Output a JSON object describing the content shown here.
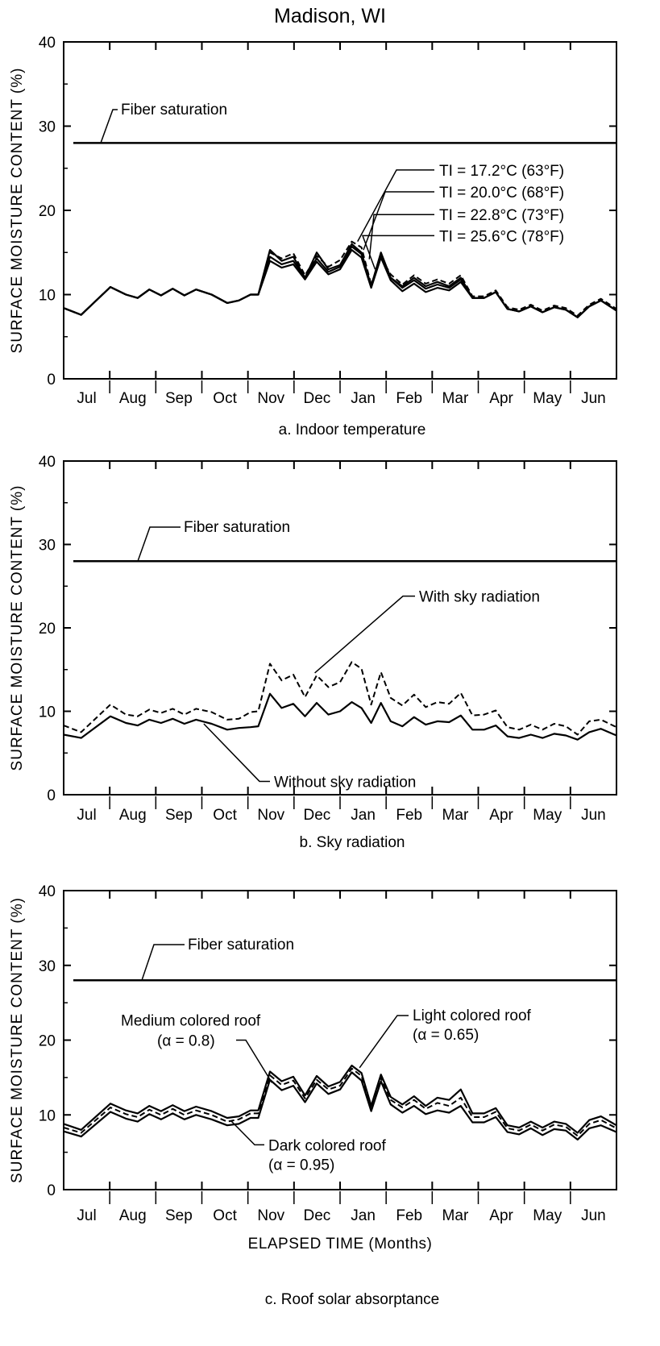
{
  "title": "Madison, WI",
  "chart_data": [
    {
      "type": "line",
      "caption": "a. Indoor temperature",
      "ylabel": "SURFACE  MOISTURE  CONTENT (%)",
      "xlabel": "",
      "ylim": [
        0,
        40
      ],
      "yticks": [
        0,
        10,
        20,
        30,
        40
      ],
      "month_labels": [
        "Jul",
        "Aug",
        "Sep",
        "Oct",
        "Nov",
        "Dec",
        "Jan",
        "Feb",
        "Mar",
        "Apr",
        "May",
        "Jun"
      ],
      "x": [
        0,
        0.45,
        1.2,
        1.6,
        1.9,
        2.2,
        2.5,
        2.8,
        3.1,
        3.4,
        3.8,
        4.2,
        4.5,
        4.8,
        5.0,
        5.3,
        5.6,
        5.9,
        6.2,
        6.5,
        6.8,
        7.1,
        7.4,
        7.65,
        7.9,
        8.15,
        8.4,
        8.7,
        9.0,
        9.3,
        9.6,
        9.9,
        10.2,
        10.5,
        10.8,
        11.1,
        11.4,
        11.7,
        12.0,
        12.3,
        12.6,
        12.9,
        13.2,
        13.5,
        13.8,
        14.2
      ],
      "series": [
        {
          "style": "solid",
          "values": [
            8.4,
            7.6,
            10.9,
            10.0,
            9.6,
            10.6,
            9.9,
            10.7,
            9.9,
            10.6,
            10.0,
            9.0,
            9.3,
            10.0,
            10.0,
            15.3,
            14.0,
            14.5,
            12.0,
            15.0,
            13.0,
            13.5,
            16.0,
            15.0,
            11.0,
            15.0,
            12.0,
            11.0,
            12.0,
            11.0,
            11.5,
            11.0,
            12.0,
            9.6,
            9.6,
            10.3,
            8.3,
            8.0,
            8.6,
            7.9,
            8.5,
            8.2,
            7.3,
            8.6,
            9.3,
            8.1
          ]
        },
        {
          "style": "dashed",
          "values": [
            8.4,
            7.6,
            10.9,
            10.0,
            9.6,
            10.6,
            9.9,
            10.7,
            9.9,
            10.6,
            10.0,
            9.0,
            9.3,
            10.0,
            10.0,
            15.0,
            14.3,
            14.9,
            12.3,
            14.6,
            13.3,
            14.1,
            16.3,
            15.6,
            11.2,
            14.4,
            12.4,
            11.2,
            12.3,
            11.3,
            11.8,
            11.3,
            12.3,
            9.8,
            9.8,
            10.5,
            8.5,
            8.2,
            8.8,
            8.1,
            8.7,
            8.4,
            7.5,
            8.8,
            9.5,
            8.3
          ]
        },
        {
          "style": "solid",
          "values": [
            8.4,
            7.6,
            10.9,
            10.0,
            9.6,
            10.6,
            9.9,
            10.7,
            9.9,
            10.6,
            10.0,
            9.0,
            9.3,
            10.0,
            10.0,
            14.5,
            13.6,
            14.0,
            12.0,
            14.3,
            12.7,
            13.3,
            15.7,
            14.8,
            11.0,
            14.7,
            12.0,
            10.8,
            11.7,
            10.7,
            11.2,
            10.8,
            11.8,
            9.6,
            9.6,
            10.3,
            8.3,
            8.0,
            8.6,
            7.9,
            8.5,
            8.2,
            7.3,
            8.6,
            9.3,
            8.1
          ]
        },
        {
          "style": "solid",
          "values": [
            8.4,
            7.6,
            10.9,
            10.0,
            9.6,
            10.6,
            9.9,
            10.7,
            9.9,
            10.6,
            10.0,
            9.0,
            9.3,
            10.0,
            10.0,
            14.0,
            13.2,
            13.6,
            11.8,
            13.9,
            12.4,
            13.0,
            15.3,
            14.4,
            10.8,
            14.4,
            11.7,
            10.4,
            11.3,
            10.3,
            10.8,
            10.5,
            11.5,
            9.6,
            9.6,
            10.3,
            8.3,
            8.0,
            8.6,
            7.9,
            8.5,
            8.2,
            7.3,
            8.6,
            9.3,
            8.1
          ]
        }
      ],
      "fiber_saturation": 28,
      "fiber_label": "Fiber saturation",
      "annotations": [
        {
          "text": "TI = 17.2°C (63°F)",
          "target_x": 7.55,
          "target_y": 16.3,
          "label_y": 24.8
        },
        {
          "text": "TI = 20.0°C (68°F)",
          "target_x": 7.7,
          "target_y": 15.3,
          "label_y": 22.2
        },
        {
          "text": "TI = 22.8°C (73°F)",
          "target_x": 7.85,
          "target_y": 14.2,
          "label_y": 19.5
        },
        {
          "text": "TI = 25.6°C (78°F)",
          "target_x": 8.0,
          "target_y": 13.0,
          "label_y": 17.0
        }
      ]
    },
    {
      "type": "line",
      "caption": "b. Sky radiation",
      "ylabel": "SURFACE  MOISTURE  CONTENT (%)",
      "xlabel": "",
      "ylim": [
        0,
        40
      ],
      "yticks": [
        0,
        10,
        20,
        30,
        40
      ],
      "month_labels": [
        "Jul",
        "Aug",
        "Sep",
        "Oct",
        "Nov",
        "Dec",
        "Jan",
        "Feb",
        "Mar",
        "Apr",
        "May",
        "Jun"
      ],
      "x": [
        0,
        0.45,
        1.2,
        1.6,
        1.9,
        2.2,
        2.5,
        2.8,
        3.1,
        3.4,
        3.8,
        4.2,
        4.5,
        4.8,
        5.0,
        5.3,
        5.6,
        5.9,
        6.2,
        6.5,
        6.8,
        7.1,
        7.4,
        7.65,
        7.9,
        8.15,
        8.4,
        8.7,
        9.0,
        9.3,
        9.6,
        9.9,
        10.2,
        10.5,
        10.8,
        11.1,
        11.4,
        11.7,
        12.0,
        12.3,
        12.6,
        12.9,
        13.2,
        13.5,
        13.8,
        14.2
      ],
      "series": [
        {
          "name": "With sky radiation",
          "style": "dashed",
          "values": [
            8.3,
            7.5,
            10.8,
            9.6,
            9.4,
            10.2,
            9.8,
            10.3,
            9.6,
            10.3,
            9.9,
            9.0,
            9.1,
            9.9,
            10.0,
            15.7,
            13.7,
            14.4,
            11.7,
            14.3,
            12.9,
            13.5,
            15.9,
            15.1,
            10.8,
            14.7,
            11.6,
            10.7,
            12.0,
            10.5,
            11.1,
            10.9,
            12.2,
            9.5,
            9.6,
            10.1,
            8.1,
            7.8,
            8.4,
            7.8,
            8.5,
            8.2,
            7.2,
            8.8,
            9.0,
            8.1
          ]
        },
        {
          "name": "Without sky radiation",
          "style": "solid",
          "values": [
            7.2,
            6.8,
            9.4,
            8.6,
            8.3,
            9.0,
            8.6,
            9.1,
            8.5,
            9.0,
            8.5,
            7.8,
            8.0,
            8.1,
            8.2,
            12.1,
            10.4,
            10.9,
            9.4,
            11.0,
            9.6,
            10.0,
            11.1,
            10.4,
            8.6,
            11.0,
            8.8,
            8.2,
            9.3,
            8.4,
            8.8,
            8.7,
            9.5,
            7.8,
            7.8,
            8.3,
            7.0,
            6.8,
            7.2,
            6.8,
            7.3,
            7.1,
            6.6,
            7.5,
            7.9,
            7.1
          ]
        }
      ],
      "fiber_saturation": 28,
      "fiber_label": "Fiber saturation",
      "annotations": [
        {
          "text": "With sky radiation",
          "target_x": 6.45,
          "target_y": 14.6,
          "label_y": 23.8
        },
        {
          "text": "Without sky radiation",
          "target_x": 3.6,
          "target_y": 8.5,
          "label_y": 1.6
        }
      ]
    },
    {
      "type": "line",
      "caption": "c. Roof solar absorptance",
      "ylabel": "SURFACE  MOISTURE  CONTENT (%)",
      "xlabel": "ELAPSED TIME (Months)",
      "ylim": [
        0,
        40
      ],
      "yticks": [
        0,
        10,
        20,
        30,
        40
      ],
      "month_labels": [
        "Jul",
        "Aug",
        "Sep",
        "Oct",
        "Nov",
        "Dec",
        "Jan",
        "Feb",
        "Mar",
        "Apr",
        "May",
        "Jun"
      ],
      "x": [
        0,
        0.45,
        1.2,
        1.6,
        1.9,
        2.2,
        2.5,
        2.8,
        3.1,
        3.4,
        3.8,
        4.2,
        4.5,
        4.8,
        5.0,
        5.3,
        5.6,
        5.9,
        6.2,
        6.5,
        6.8,
        7.1,
        7.4,
        7.65,
        7.9,
        8.15,
        8.4,
        8.7,
        9.0,
        9.3,
        9.6,
        9.9,
        10.2,
        10.5,
        10.8,
        11.1,
        11.4,
        11.7,
        12.0,
        12.3,
        12.6,
        12.9,
        13.2,
        13.5,
        13.8,
        14.2
      ],
      "series": [
        {
          "name": "Light colored roof (α = 0.65)",
          "style": "solid",
          "values": [
            8.8,
            8.0,
            11.5,
            10.6,
            10.2,
            11.2,
            10.5,
            11.3,
            10.5,
            11.1,
            10.5,
            9.6,
            9.8,
            10.6,
            10.6,
            15.8,
            14.5,
            15.1,
            12.6,
            15.2,
            13.8,
            14.4,
            16.6,
            15.6,
            11.2,
            15.4,
            12.4,
            11.4,
            12.5,
            11.2,
            12.3,
            12.0,
            13.4,
            10.2,
            10.2,
            10.9,
            8.6,
            8.3,
            9.1,
            8.3,
            9.1,
            8.8,
            7.6,
            9.3,
            9.8,
            8.6
          ]
        },
        {
          "name": "Medium colored roof (α = 0.8)",
          "style": "dashed",
          "values": [
            8.3,
            7.6,
            11.0,
            10.1,
            9.7,
            10.7,
            10.0,
            10.8,
            10.0,
            10.6,
            10.0,
            9.1,
            9.4,
            10.2,
            10.2,
            15.3,
            14.0,
            14.6,
            12.2,
            14.7,
            13.4,
            13.9,
            16.2,
            15.2,
            10.9,
            15.0,
            12.0,
            11.0,
            12.0,
            10.8,
            11.6,
            11.2,
            12.3,
            9.7,
            9.7,
            10.4,
            8.2,
            7.9,
            8.7,
            7.9,
            8.7,
            8.4,
            7.2,
            8.8,
            9.3,
            8.2
          ]
        },
        {
          "name": "Dark colored roof (α = 0.95)",
          "style": "solid",
          "values": [
            7.8,
            7.1,
            10.4,
            9.5,
            9.1,
            10.1,
            9.4,
            10.2,
            9.4,
            10.0,
            9.4,
            8.6,
            8.8,
            9.6,
            9.6,
            14.7,
            13.3,
            13.9,
            11.7,
            14.2,
            12.8,
            13.4,
            15.7,
            14.6,
            10.5,
            14.5,
            11.4,
            10.3,
            11.2,
            10.1,
            10.6,
            10.3,
            11.2,
            9.0,
            9.0,
            9.7,
            7.7,
            7.4,
            8.2,
            7.3,
            8.1,
            7.9,
            6.7,
            8.2,
            8.6,
            7.7
          ]
        }
      ],
      "fiber_saturation": 28,
      "fiber_label": "Fiber saturation",
      "annotations": [
        {
          "lines": [
            "Medium colored roof",
            "(α = 0.8)"
          ],
          "target_x": 5.35,
          "target_y": 14.3,
          "label_y": 20.0
        },
        {
          "lines": [
            "Light colored roof",
            "(α = 0.65)"
          ],
          "target_x": 7.6,
          "target_y": 16.3,
          "label_y": 22.0
        },
        {
          "lines": [
            "Dark colored roof",
            "(α = 0.95)"
          ],
          "target_x": 4.3,
          "target_y": 9.2,
          "label_y": 6.0
        }
      ]
    }
  ]
}
